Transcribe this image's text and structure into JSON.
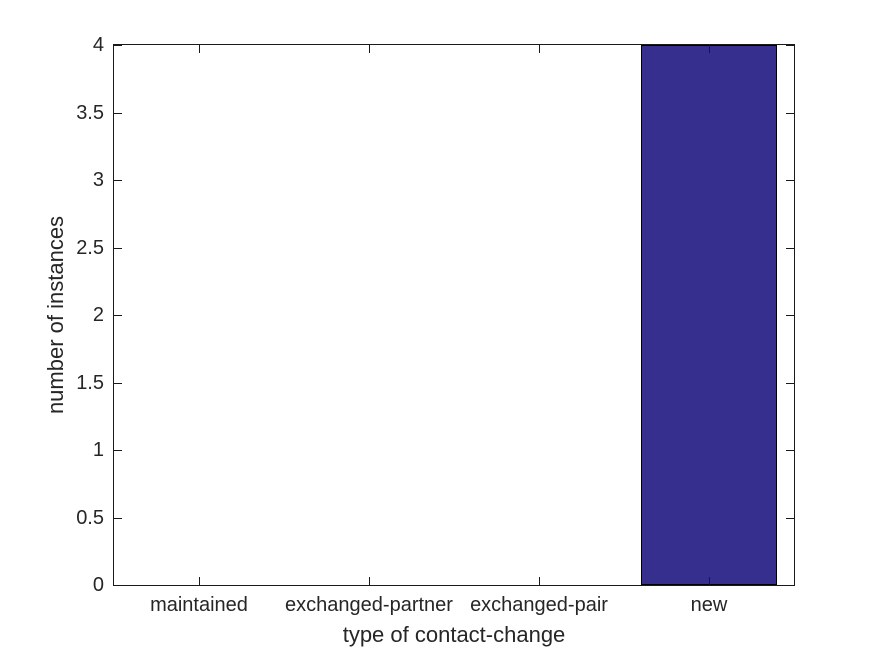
{
  "figure": {
    "background_color": "#ffffff",
    "axis_line_color": "#1a1a1a",
    "text_color": "#262626"
  },
  "chart_data": {
    "type": "bar",
    "title": "",
    "xlabel": "type of contact-change",
    "ylabel": "number of instances",
    "categories": [
      "maintained",
      "exchanged-partner",
      "exchanged-pair",
      "new"
    ],
    "values": [
      0,
      0,
      0,
      4
    ],
    "series": [
      {
        "name": "instances",
        "values": [
          0,
          0,
          0,
          4
        ]
      }
    ],
    "ylim": [
      0,
      4
    ],
    "yticks": [
      0,
      0.5,
      1,
      1.5,
      2,
      2.5,
      3,
      3.5,
      4
    ],
    "ytick_labels": [
      "0",
      "0.5",
      "1",
      "1.5",
      "2",
      "2.5",
      "3",
      "3.5",
      "4"
    ],
    "xlim_units": [
      0.5,
      4.5
    ],
    "bar_width_fraction": 0.8,
    "bar_color": "#372f8d",
    "bar_edge_color": "#000000",
    "grid": false,
    "legend_position": "none",
    "box": true,
    "tick_direction": "in",
    "ticks_mirrored": true
  }
}
